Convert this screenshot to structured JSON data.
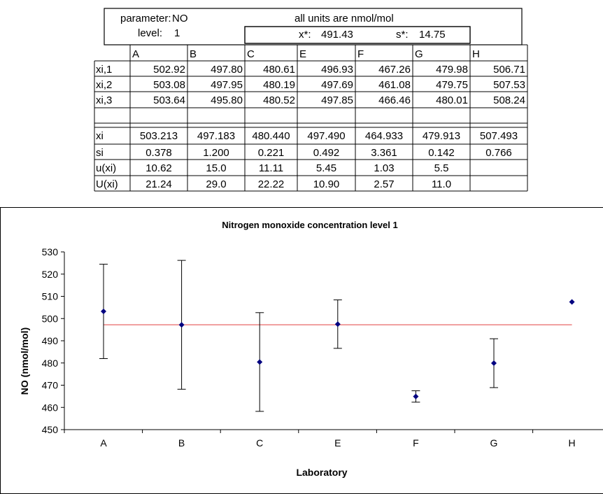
{
  "table": {
    "parameter_label": "parameter:",
    "parameter_value": "NO",
    "units_note": "all units are nmol/mol",
    "level_label": "level:",
    "level_value": "1",
    "xstar_label": "x*:",
    "xstar_value": "491.43",
    "sstar_label": "s*:",
    "sstar_value": "14.75",
    "labs": [
      "A",
      "B",
      "C",
      "E",
      "F",
      "G",
      "H"
    ],
    "rows": [
      {
        "label": "xi,1",
        "values": [
          "502.92",
          "497.80",
          "480.61",
          "496.93",
          "467.26",
          "479.98",
          "506.71"
        ],
        "align": "right"
      },
      {
        "label": "xi,2",
        "values": [
          "503.08",
          "497.95",
          "480.19",
          "497.69",
          "461.08",
          "479.75",
          "507.53"
        ],
        "align": "right"
      },
      {
        "label": "xi,3",
        "values": [
          "503.64",
          "495.80",
          "480.52",
          "497.85",
          "466.46",
          "480.01",
          "508.24"
        ],
        "align": "right"
      },
      {
        "label": "xi",
        "values": [
          "503.213",
          "497.183",
          "480.440",
          "497.490",
          "464.933",
          "479.913",
          "507.493"
        ],
        "align": "center"
      },
      {
        "label": "si",
        "values": [
          "0.378",
          "1.200",
          "0.221",
          "0.492",
          "3.361",
          "0.142",
          "0.766"
        ],
        "align": "center"
      },
      {
        "label": "u(xi)",
        "values": [
          "10.62",
          "15.0",
          "11.11",
          "5.45",
          "1.03",
          "5.5",
          ""
        ],
        "align": "center"
      },
      {
        "label": "U(xi)",
        "values": [
          "21.24",
          "29.0",
          "22.22",
          "10.90",
          "2.57",
          "11.0",
          ""
        ],
        "align": "center"
      }
    ]
  },
  "chart_data": {
    "type": "scatter",
    "title": "Nitrogen monoxide concentration level 1",
    "xlabel": "Laboratory",
    "ylabel": "NO (nmol/mol)",
    "categories": [
      "A",
      "B",
      "C",
      "E",
      "F",
      "G",
      "H"
    ],
    "values": [
      503.213,
      497.183,
      480.44,
      497.49,
      464.933,
      479.913,
      507.493
    ],
    "expanded_uncertainty": [
      21.24,
      29.0,
      22.22,
      10.9,
      2.57,
      11.0,
      0
    ],
    "reference_line": 497.2,
    "ylim": [
      450,
      530
    ],
    "yticks": [
      450,
      460,
      470,
      480,
      490,
      500,
      510,
      520,
      530
    ],
    "grid": false,
    "legend": "none",
    "colors": {
      "marker": "#000080",
      "reference_line": "#e04040",
      "error_bar": "#000000"
    }
  }
}
